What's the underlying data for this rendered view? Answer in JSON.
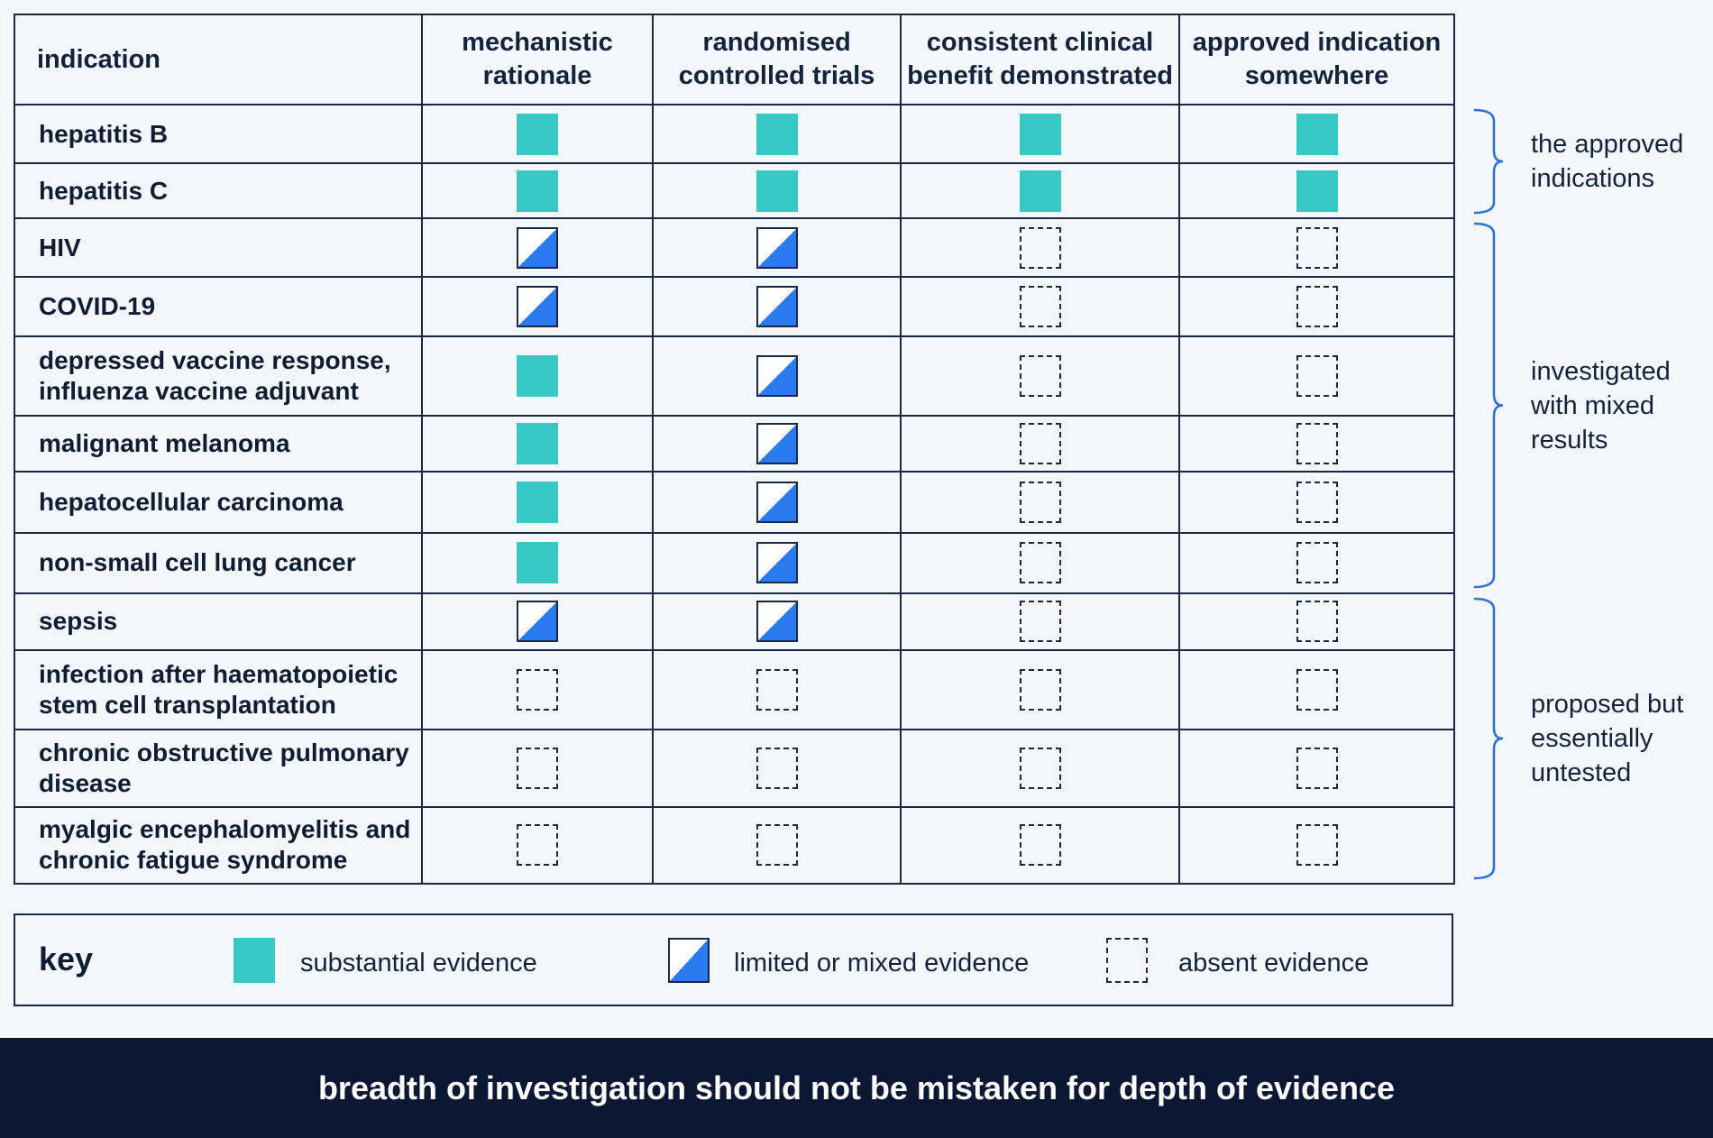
{
  "columns": [
    "indication",
    "mechanistic rationale",
    "randomised controlled trials",
    "consistent clinical benefit demonstrated",
    "approved indication somewhere"
  ],
  "rows": [
    {
      "label": "hepatitis B",
      "ratings": [
        "substantial",
        "substantial",
        "substantial",
        "substantial"
      ]
    },
    {
      "label": "hepatitis C",
      "ratings": [
        "substantial",
        "substantial",
        "substantial",
        "substantial"
      ]
    },
    {
      "label": "HIV",
      "ratings": [
        "limited",
        "limited",
        "absent",
        "absent"
      ]
    },
    {
      "label": "COVID-19",
      "ratings": [
        "limited",
        "limited",
        "absent",
        "absent"
      ]
    },
    {
      "label": "depressed vaccine response, influenza vaccine adjuvant",
      "ratings": [
        "substantial",
        "limited",
        "absent",
        "absent"
      ]
    },
    {
      "label": "malignant melanoma",
      "ratings": [
        "substantial",
        "limited",
        "absent",
        "absent"
      ]
    },
    {
      "label": "hepatocellular carcinoma",
      "ratings": [
        "substantial",
        "limited",
        "absent",
        "absent"
      ]
    },
    {
      "label": "non-small cell lung cancer",
      "ratings": [
        "substantial",
        "limited",
        "absent",
        "absent"
      ]
    },
    {
      "label": "sepsis",
      "ratings": [
        "limited",
        "limited",
        "absent",
        "absent"
      ]
    },
    {
      "label": "infection after haematopoietic stem cell transplantation",
      "ratings": [
        "absent",
        "absent",
        "absent",
        "absent"
      ]
    },
    {
      "label": "chronic obstructive pulmonary disease",
      "ratings": [
        "absent",
        "absent",
        "absent",
        "absent"
      ]
    },
    {
      "label": "myalgic encephalomyelitis and chronic fatigue syndrome",
      "ratings": [
        "absent",
        "absent",
        "absent",
        "absent"
      ]
    }
  ],
  "groups": [
    {
      "label": "the approved indications",
      "first_row": 0,
      "last_row": 1
    },
    {
      "label": "investigated with mixed results",
      "first_row": 2,
      "last_row": 7
    },
    {
      "label": "proposed but essentially untested",
      "first_row": 8,
      "last_row": 11
    }
  ],
  "key": {
    "title": "key",
    "items": [
      {
        "rating": "substantial",
        "label": "substantial evidence"
      },
      {
        "rating": "limited",
        "label": "limited or mixed evidence"
      },
      {
        "rating": "absent",
        "label": "absent evidence"
      }
    ]
  },
  "footer": "breadth of investigation should not be mistaken for depth of evidence",
  "colors": {
    "substantial": "#36c9c3",
    "limited": "#2a7af0",
    "bracket": "#2a6fdc",
    "footer_bg": "#0b1733",
    "border": "#1b2a44"
  }
}
